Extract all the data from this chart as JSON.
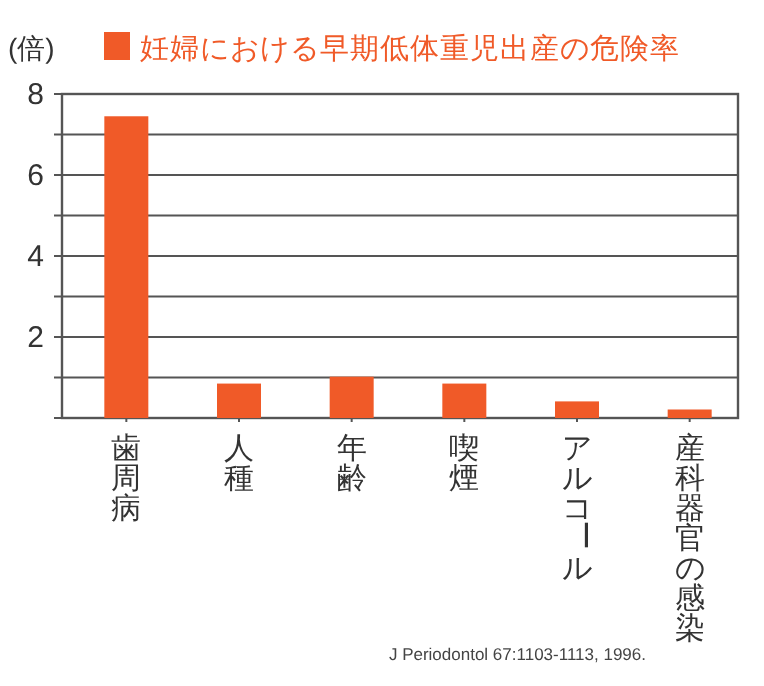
{
  "chart_data": {
    "type": "bar",
    "ylabel": "(倍)",
    "categories": [
      "歯周病",
      "人種",
      "年齢",
      "喫煙",
      "アルコール",
      "産科器官の感染"
    ],
    "series": [
      {
        "name": "妊婦における早期低体重児出産の危険率",
        "color": "#f05a28",
        "values": [
          7.45,
          0.85,
          1.02,
          0.85,
          0.41,
          0.21
        ]
      }
    ],
    "ylim": [
      0,
      8
    ],
    "yticks": [
      {
        "value": 0,
        "label": null
      },
      {
        "value": 1,
        "label": null
      },
      2,
      {
        "value": 3,
        "label": null
      },
      4,
      {
        "value": 5,
        "label": null
      },
      6,
      {
        "value": 7,
        "label": null
      },
      8
    ],
    "grid": "y",
    "legend": "top",
    "annotations": [
      "J Periodontol 67:1103-1113, 1996."
    ]
  }
}
